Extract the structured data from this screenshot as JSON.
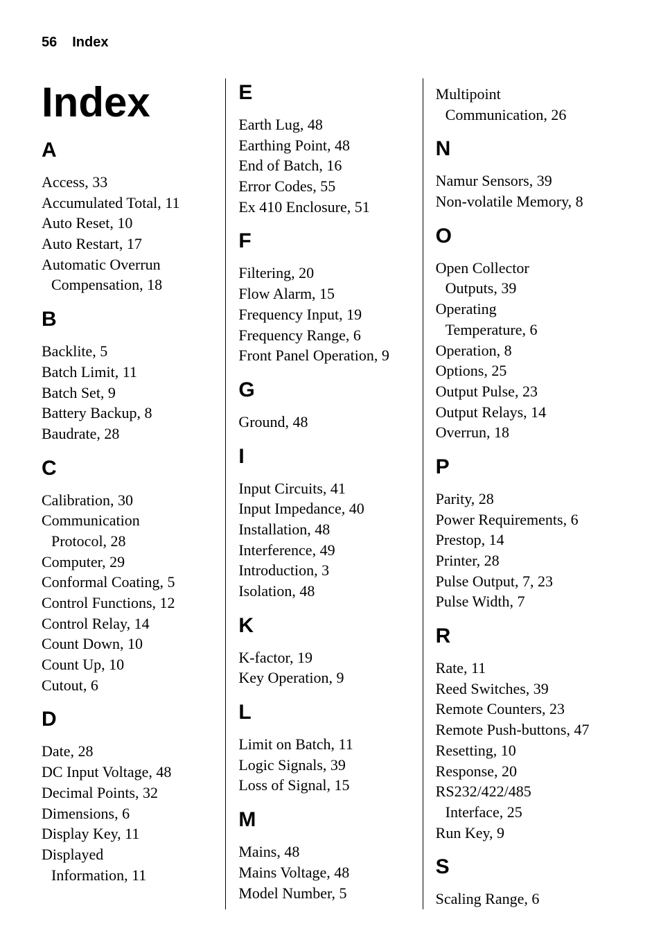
{
  "header": {
    "page_number": "56",
    "label": "Index"
  },
  "title": "Index",
  "sections": {
    "A": [
      {
        "term": "Access",
        "page": "33"
      },
      {
        "term": "Accumulated Total",
        "page": "11"
      },
      {
        "term": "Auto Reset",
        "page": "10"
      },
      {
        "term": "Auto Restart",
        "page": "17"
      },
      {
        "term": "Automatic Overrun",
        "sub": "Compensation",
        "page": "18"
      }
    ],
    "B": [
      {
        "term": "Backlite",
        "page": "5"
      },
      {
        "term": "Batch Limit",
        "page": "11"
      },
      {
        "term": "Batch Set",
        "page": "9"
      },
      {
        "term": "Battery Backup",
        "page": "8"
      },
      {
        "term": "Baudrate",
        "page": "28"
      }
    ],
    "C": [
      {
        "term": "Calibration",
        "page": "30"
      },
      {
        "term": "Communication",
        "sub": "Protocol",
        "page": "28"
      },
      {
        "term": "Computer",
        "page": "29"
      },
      {
        "term": "Conformal Coating",
        "page": "5"
      },
      {
        "term": "Control Functions",
        "page": "12"
      },
      {
        "term": "Control Relay",
        "page": "14"
      },
      {
        "term": "Count Down",
        "page": "10"
      },
      {
        "term": "Count Up",
        "page": "10"
      },
      {
        "term": "Cutout",
        "page": "6"
      }
    ],
    "D": [
      {
        "term": "Date",
        "page": "28"
      },
      {
        "term": "DC Input Voltage",
        "page": "48"
      },
      {
        "term": "Decimal Points",
        "page": "32"
      },
      {
        "term": "Dimensions",
        "page": "6"
      },
      {
        "term": "Display Key",
        "page": "11"
      },
      {
        "term": "Displayed",
        "sub": "Information",
        "page": "11"
      }
    ],
    "E": [
      {
        "term": "Earth Lug",
        "page": "48"
      },
      {
        "term": "Earthing Point",
        "page": "48"
      },
      {
        "term": "End of Batch",
        "page": "16"
      },
      {
        "term": "Error Codes",
        "page": "55"
      },
      {
        "term": "Ex 410 Enclosure",
        "page": "51"
      }
    ],
    "F": [
      {
        "term": "Filtering",
        "page": "20"
      },
      {
        "term": "Flow Alarm",
        "page": "15"
      },
      {
        "term": "Frequency  Input",
        "page": "19"
      },
      {
        "term": "Frequency Range",
        "page": "6"
      },
      {
        "term": "Front Panel Operation",
        "page": "9"
      }
    ],
    "G": [
      {
        "term": "Ground",
        "page": "48"
      }
    ],
    "I": [
      {
        "term": "Input Circuits",
        "page": "41"
      },
      {
        "term": "Input Impedance",
        "page": "40"
      },
      {
        "term": "Installation",
        "page": "48"
      },
      {
        "term": "Interference",
        "page": "49"
      },
      {
        "term": "Introduction",
        "page": "3"
      },
      {
        "term": "Isolation",
        "page": "48"
      }
    ],
    "K": [
      {
        "term": "K-factor",
        "page": "19"
      },
      {
        "term": "Key Operation",
        "page": "9"
      }
    ],
    "L": [
      {
        "term": "Limit on Batch",
        "page": "11"
      },
      {
        "term": "Logic Signals",
        "page": "39"
      },
      {
        "term": "Loss of Signal",
        "page": "15"
      }
    ],
    "M": [
      {
        "term": "Mains",
        "page": "48"
      },
      {
        "term": "Mains Voltage",
        "page": "48"
      },
      {
        "term": "Model Number",
        "page": "5"
      },
      {
        "term": "Multipoint",
        "sub": "Communication",
        "page": "26"
      }
    ],
    "N": [
      {
        "term": "Namur Sensors",
        "page": "39"
      },
      {
        "term": "Non-volatile Memory",
        "page": "8"
      }
    ],
    "O": [
      {
        "term": "Open Collector",
        "sub": "Outputs",
        "page": "39"
      },
      {
        "term": "Operating",
        "sub": "Temperature",
        "page": "6"
      },
      {
        "term": "Operation",
        "page": "8"
      },
      {
        "term": "Options",
        "page": "25"
      },
      {
        "term": "Output Pulse",
        "page": "23"
      },
      {
        "term": "Output Relays",
        "page": "14"
      },
      {
        "term": "Overrun",
        "page": "18"
      }
    ],
    "P": [
      {
        "term": "Parity",
        "page": "28"
      },
      {
        "term": "Power Requirements",
        "page": "6"
      },
      {
        "term": "Prestop",
        "page": "14"
      },
      {
        "term": "Printer",
        "page": "28"
      },
      {
        "term": "Pulse Output",
        "page": "7, 23"
      },
      {
        "term": "Pulse Width",
        "page": "7"
      }
    ],
    "R": [
      {
        "term": "Rate",
        "page": "11"
      },
      {
        "term": "Reed Switches",
        "page": "39"
      },
      {
        "term": "Remote Counters",
        "page": "23"
      },
      {
        "term": "Remote Push-buttons",
        "page": "47"
      },
      {
        "term": "Resetting",
        "page": "10"
      },
      {
        "term": "Response",
        "page": "20"
      },
      {
        "term": "RS232/422/485",
        "sub": "Interface",
        "page": "25"
      },
      {
        "term": "Run Key",
        "page": "9"
      }
    ],
    "S": [
      {
        "term": "Scaling Range",
        "page": "6"
      }
    ]
  },
  "columns": {
    "col1_order": [
      "A",
      "B",
      "C",
      "D"
    ],
    "col2_order": [
      "E",
      "F",
      "G",
      "I",
      "K",
      "L",
      "M"
    ],
    "col2_m_cutoff": 3,
    "col3_m_start": 3,
    "col3_order": [
      "M",
      "N",
      "O",
      "P",
      "R",
      "S"
    ]
  }
}
